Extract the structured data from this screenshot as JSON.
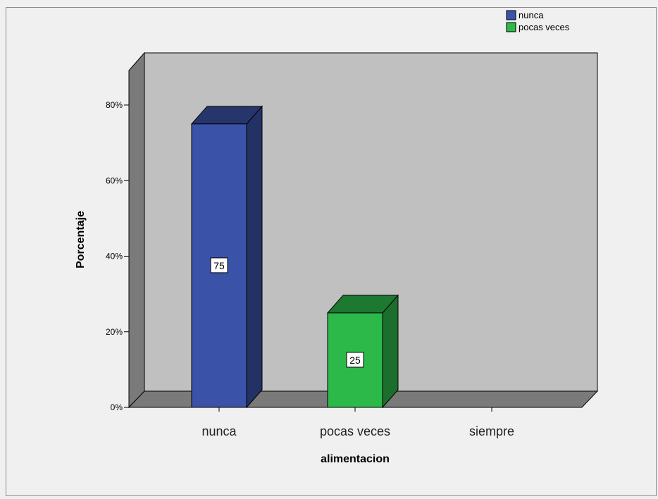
{
  "chart_data": {
    "type": "bar",
    "title": "",
    "xlabel": "alimentacion",
    "ylabel": "Porcentaje",
    "categories": [
      "nunca",
      "pocas veces",
      "siempre"
    ],
    "values": [
      75,
      25,
      0
    ],
    "data_labels": [
      "75",
      "25",
      ""
    ],
    "colors": [
      "#3a53a8",
      "#2db84a",
      "#888888"
    ],
    "ylim": [
      0,
      80
    ],
    "yticks": [
      "0%",
      "20%",
      "40%",
      "60%",
      "80%"
    ],
    "ytick_values": [
      0,
      20,
      40,
      60,
      80
    ],
    "legend": {
      "placement": "top-right",
      "entries": [
        {
          "label": "nunca",
          "color": "#3a53a8"
        },
        {
          "label": "pocas veces",
          "color": "#2db84a"
        }
      ]
    },
    "grid": false
  }
}
